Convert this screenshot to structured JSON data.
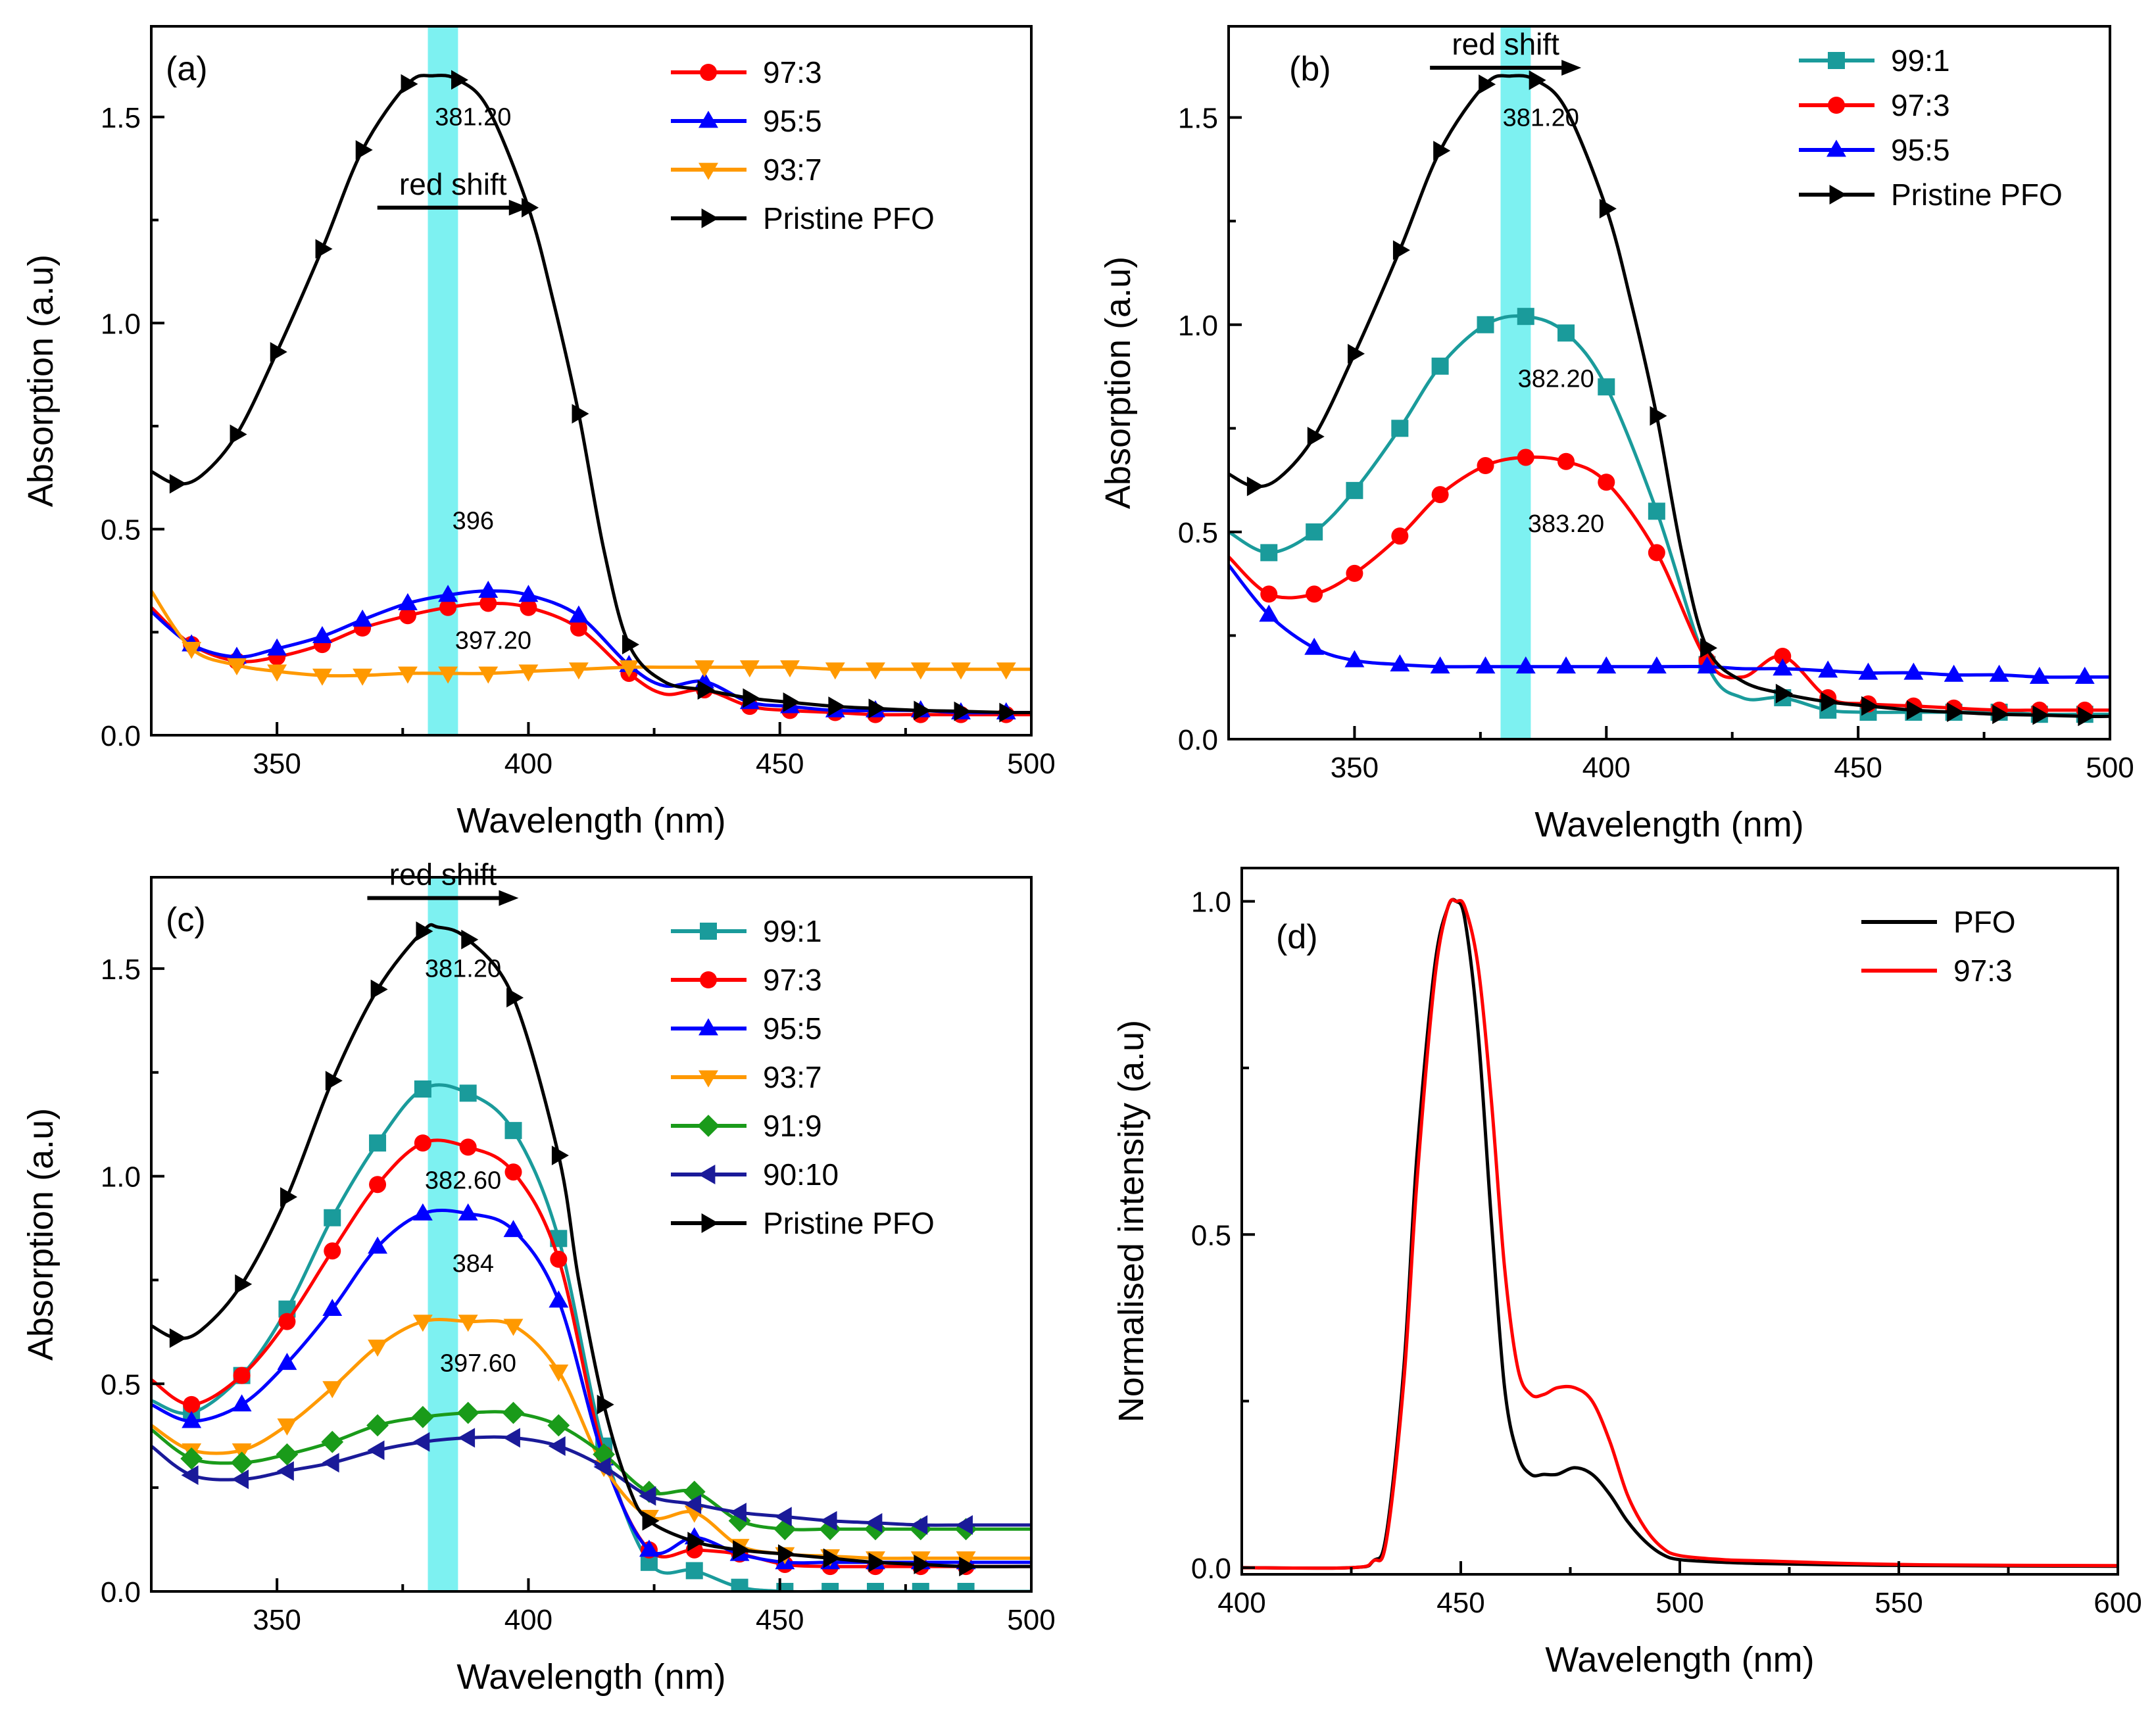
{
  "chart_data": [
    {
      "type": "line",
      "panel_label": "(a)",
      "xlabel": "Wavelength (nm)",
      "ylabel": "Absorption (a.u)",
      "xlim": [
        325,
        500
      ],
      "ylim": [
        0,
        1.72
      ],
      "xticks": [
        350,
        400,
        450,
        500
      ],
      "yticks": [
        0.0,
        0.5,
        1.0,
        1.5
      ],
      "ytick_labels": [
        "0.0",
        "0.5",
        "1.0",
        "1.5"
      ],
      "band_x": [
        380,
        386
      ],
      "band_color": "#6ff0f0",
      "series": [
        {
          "name": "97:3",
          "color": "#ff0000",
          "marker": "circle",
          "x": [
            325,
            333,
            342,
            350,
            359,
            367,
            376,
            384,
            392,
            400,
            410,
            420,
            427,
            435,
            444,
            452,
            461,
            469,
            478,
            486,
            495,
            500
          ],
          "y": [
            0.31,
            0.22,
            0.18,
            0.19,
            0.22,
            0.26,
            0.29,
            0.31,
            0.32,
            0.31,
            0.26,
            0.15,
            0.1,
            0.11,
            0.07,
            0.06,
            0.055,
            0.05,
            0.05,
            0.05,
            0.05,
            0.05
          ]
        },
        {
          "name": "95:5",
          "color": "#0000ff",
          "marker": "triangle-up",
          "x": [
            325,
            333,
            342,
            350,
            359,
            367,
            376,
            384,
            392,
            400,
            410,
            420,
            427,
            435,
            444,
            452,
            461,
            469,
            478,
            486,
            495,
            500
          ],
          "y": [
            0.3,
            0.22,
            0.19,
            0.21,
            0.24,
            0.28,
            0.32,
            0.34,
            0.35,
            0.34,
            0.29,
            0.17,
            0.12,
            0.13,
            0.08,
            0.07,
            0.06,
            0.06,
            0.06,
            0.055,
            0.055,
            0.055
          ]
        },
        {
          "name": "93:7",
          "color": "#ff9900",
          "marker": "triangle-down",
          "x": [
            325,
            333,
            342,
            350,
            359,
            367,
            376,
            384,
            392,
            400,
            410,
            420,
            427,
            435,
            444,
            452,
            461,
            469,
            478,
            486,
            495,
            500
          ],
          "y": [
            0.35,
            0.21,
            0.17,
            0.155,
            0.145,
            0.145,
            0.15,
            0.15,
            0.15,
            0.155,
            0.16,
            0.165,
            0.165,
            0.165,
            0.165,
            0.165,
            0.16,
            0.16,
            0.16,
            0.16,
            0.16,
            0.16
          ]
        },
        {
          "name": "Pristine PFO",
          "color": "#000000",
          "marker": "triangle-right",
          "x": [
            325,
            330,
            335,
            342,
            350,
            359,
            367,
            376,
            381,
            386,
            392,
            400,
            405,
            410,
            415,
            420,
            427,
            435,
            444,
            452,
            461,
            469,
            478,
            486,
            495,
            500
          ],
          "y": [
            0.64,
            0.61,
            0.63,
            0.73,
            0.93,
            1.18,
            1.42,
            1.58,
            1.6,
            1.59,
            1.52,
            1.28,
            1.05,
            0.78,
            0.45,
            0.22,
            0.13,
            0.11,
            0.09,
            0.08,
            0.07,
            0.065,
            0.06,
            0.058,
            0.055,
            0.055
          ]
        }
      ],
      "annotations": [
        {
          "text": "381.20",
          "x": 389,
          "y": 1.48
        },
        {
          "text": "396",
          "x": 389,
          "y": 0.5
        },
        {
          "text": "397.20",
          "x": 393,
          "y": 0.21
        },
        {
          "text": "red shift",
          "x": 385,
          "y": 1.28
        }
      ]
    },
    {
      "type": "line",
      "panel_label": "(b)",
      "xlabel": "Wavelength (nm)",
      "ylabel": "Absorption (a.u)",
      "xlim": [
        325,
        500
      ],
      "ylim": [
        0,
        1.72
      ],
      "xticks": [
        350,
        400,
        450,
        500
      ],
      "yticks": [
        0.0,
        0.5,
        1.0,
        1.5
      ],
      "ytick_labels": [
        "0.0",
        "0.5",
        "1.0",
        "1.5"
      ],
      "band_x": [
        379,
        385
      ],
      "band_color": "#6ff0f0",
      "series": [
        {
          "name": "99:1",
          "color": "#1a9b9b",
          "marker": "square",
          "x": [
            325,
            333,
            342,
            350,
            359,
            367,
            376,
            384,
            392,
            400,
            410,
            420,
            427,
            435,
            444,
            452,
            461,
            469,
            478,
            486,
            495,
            500
          ],
          "y": [
            0.5,
            0.45,
            0.5,
            0.6,
            0.75,
            0.9,
            1.0,
            1.02,
            0.98,
            0.85,
            0.55,
            0.18,
            0.1,
            0.1,
            0.07,
            0.065,
            0.065,
            0.065,
            0.065,
            0.06,
            0.06,
            0.06
          ]
        },
        {
          "name": "97:3",
          "color": "#ff0000",
          "marker": "circle",
          "x": [
            325,
            333,
            342,
            350,
            359,
            367,
            376,
            384,
            392,
            400,
            410,
            420,
            427,
            435,
            444,
            452,
            461,
            469,
            478,
            486,
            495,
            500
          ],
          "y": [
            0.44,
            0.35,
            0.35,
            0.4,
            0.49,
            0.59,
            0.66,
            0.68,
            0.67,
            0.62,
            0.45,
            0.19,
            0.15,
            0.2,
            0.1,
            0.085,
            0.08,
            0.075,
            0.07,
            0.07,
            0.07,
            0.07
          ]
        },
        {
          "name": "95:5",
          "color": "#0000ff",
          "marker": "triangle-up",
          "x": [
            325,
            333,
            342,
            350,
            359,
            367,
            376,
            384,
            392,
            400,
            410,
            420,
            427,
            435,
            444,
            452,
            461,
            469,
            478,
            486,
            495,
            500
          ],
          "y": [
            0.42,
            0.3,
            0.22,
            0.19,
            0.18,
            0.175,
            0.175,
            0.175,
            0.175,
            0.175,
            0.175,
            0.175,
            0.17,
            0.17,
            0.165,
            0.16,
            0.16,
            0.155,
            0.155,
            0.15,
            0.15,
            0.15
          ]
        },
        {
          "name": "Pristine PFO",
          "color": "#000000",
          "marker": "triangle-right",
          "x": [
            325,
            330,
            335,
            342,
            350,
            359,
            367,
            376,
            381,
            386,
            392,
            400,
            405,
            410,
            415,
            420,
            427,
            435,
            444,
            452,
            461,
            469,
            478,
            486,
            495,
            500
          ],
          "y": [
            0.64,
            0.61,
            0.63,
            0.73,
            0.93,
            1.18,
            1.42,
            1.58,
            1.6,
            1.59,
            1.52,
            1.28,
            1.05,
            0.78,
            0.45,
            0.22,
            0.14,
            0.11,
            0.09,
            0.08,
            0.07,
            0.065,
            0.06,
            0.058,
            0.055,
            0.055
          ]
        }
      ],
      "annotations": [
        {
          "text": "381.20",
          "x": 387,
          "y": 1.48
        },
        {
          "text": "382.20",
          "x": 390,
          "y": 0.85
        },
        {
          "text": "383.20",
          "x": 392,
          "y": 0.5
        },
        {
          "text": "red shift",
          "x": 380,
          "y": 1.62
        }
      ]
    },
    {
      "type": "line",
      "panel_label": "(c)",
      "xlabel": "Wavelength (nm)",
      "ylabel": "Absorption (a.u)",
      "xlim": [
        325,
        500
      ],
      "ylim": [
        0,
        1.72
      ],
      "xticks": [
        350,
        400,
        450,
        500
      ],
      "yticks": [
        0.0,
        0.5,
        1.0,
        1.5
      ],
      "ytick_labels": [
        "0.0",
        "0.5",
        "1.0",
        "1.5"
      ],
      "band_x": [
        380,
        386
      ],
      "band_color": "#6ff0f0",
      "series": [
        {
          "name": "99:1",
          "color": "#1a9b9b",
          "marker": "square",
          "x": [
            325,
            333,
            343,
            352,
            361,
            370,
            379,
            388,
            397,
            406,
            415,
            424,
            433,
            442,
            451,
            460,
            469,
            478,
            487,
            500
          ],
          "y": [
            0.46,
            0.43,
            0.52,
            0.68,
            0.9,
            1.08,
            1.21,
            1.2,
            1.11,
            0.85,
            0.35,
            0.07,
            0.05,
            0.01,
            0.0,
            0.0,
            0.0,
            0.0,
            0.0,
            0.0
          ]
        },
        {
          "name": "97:3",
          "color": "#ff0000",
          "marker": "circle",
          "x": [
            325,
            333,
            343,
            352,
            361,
            370,
            379,
            388,
            397,
            406,
            415,
            424,
            433,
            442,
            451,
            460,
            469,
            478,
            487,
            500
          ],
          "y": [
            0.51,
            0.45,
            0.52,
            0.65,
            0.82,
            0.98,
            1.08,
            1.07,
            1.01,
            0.8,
            0.33,
            0.1,
            0.1,
            0.09,
            0.065,
            0.06,
            0.06,
            0.06,
            0.06,
            0.06
          ]
        },
        {
          "name": "95:5",
          "color": "#0000ff",
          "marker": "triangle-up",
          "x": [
            325,
            333,
            343,
            352,
            361,
            370,
            379,
            388,
            397,
            406,
            415,
            424,
            433,
            442,
            451,
            460,
            469,
            478,
            487,
            500
          ],
          "y": [
            0.45,
            0.41,
            0.45,
            0.55,
            0.68,
            0.83,
            0.91,
            0.91,
            0.87,
            0.7,
            0.32,
            0.1,
            0.13,
            0.09,
            0.07,
            0.07,
            0.07,
            0.07,
            0.07,
            0.07
          ]
        },
        {
          "name": "93:7",
          "color": "#ff9900",
          "marker": "triangle-down",
          "x": [
            325,
            333,
            343,
            352,
            361,
            370,
            379,
            388,
            397,
            406,
            415,
            424,
            433,
            442,
            451,
            460,
            469,
            478,
            487,
            500
          ],
          "y": [
            0.4,
            0.34,
            0.34,
            0.4,
            0.49,
            0.59,
            0.65,
            0.65,
            0.64,
            0.53,
            0.3,
            0.18,
            0.19,
            0.11,
            0.09,
            0.085,
            0.08,
            0.08,
            0.08,
            0.08
          ]
        },
        {
          "name": "91:9",
          "color": "#1a9b1a",
          "marker": "diamond",
          "x": [
            325,
            333,
            343,
            352,
            361,
            370,
            379,
            388,
            397,
            406,
            415,
            424,
            433,
            442,
            451,
            460,
            469,
            478,
            487,
            500
          ],
          "y": [
            0.39,
            0.32,
            0.31,
            0.33,
            0.36,
            0.4,
            0.42,
            0.43,
            0.43,
            0.4,
            0.33,
            0.24,
            0.24,
            0.17,
            0.15,
            0.15,
            0.15,
            0.15,
            0.15,
            0.15
          ]
        },
        {
          "name": "90:10",
          "color": "#1a1a99",
          "marker": "triangle-left",
          "x": [
            325,
            333,
            343,
            352,
            361,
            370,
            379,
            388,
            397,
            406,
            415,
            424,
            433,
            442,
            451,
            460,
            469,
            478,
            487,
            500
          ],
          "y": [
            0.35,
            0.28,
            0.27,
            0.29,
            0.31,
            0.34,
            0.36,
            0.37,
            0.37,
            0.35,
            0.3,
            0.23,
            0.21,
            0.19,
            0.18,
            0.17,
            0.165,
            0.16,
            0.16,
            0.16
          ]
        },
        {
          "name": "Pristine PFO",
          "color": "#000000",
          "marker": "triangle-right",
          "x": [
            325,
            330,
            335,
            343,
            352,
            361,
            370,
            379,
            382,
            388,
            397,
            406,
            410,
            415,
            420,
            424,
            433,
            442,
            451,
            460,
            469,
            478,
            487,
            500
          ],
          "y": [
            0.64,
            0.61,
            0.63,
            0.74,
            0.95,
            1.23,
            1.45,
            1.59,
            1.6,
            1.57,
            1.43,
            1.05,
            0.75,
            0.45,
            0.25,
            0.17,
            0.12,
            0.1,
            0.09,
            0.08,
            0.07,
            0.065,
            0.06,
            0.06
          ]
        }
      ],
      "annotations": [
        {
          "text": "381.20",
          "x": 387,
          "y": 1.48
        },
        {
          "text": "382.60",
          "x": 387,
          "y": 0.97
        },
        {
          "text": "384",
          "x": 389,
          "y": 0.77
        },
        {
          "text": "397.60",
          "x": 390,
          "y": 0.53
        },
        {
          "text": "red shift",
          "x": 383,
          "y": 1.67
        }
      ]
    },
    {
      "type": "line",
      "panel_label": "(d)",
      "xlabel": "Wavelength (nm)",
      "ylabel": "Normalised intensity (a.u)",
      "xlim": [
        400,
        600
      ],
      "ylim": [
        -0.01,
        1.05
      ],
      "xticks": [
        400,
        450,
        500,
        550,
        600
      ],
      "yticks": [
        0.0,
        0.5,
        1.0
      ],
      "ytick_labels": [
        "0.0",
        "0.5",
        "1.0"
      ],
      "series": [
        {
          "name": "PFO",
          "color": "#000000",
          "marker": "none",
          "x": [
            400,
            425,
            430,
            433,
            437,
            440,
            444,
            447,
            449,
            451,
            454,
            457,
            460,
            463,
            466,
            469,
            472,
            476,
            480,
            484,
            488,
            492,
            496,
            500,
            510,
            520,
            540,
            560,
            600
          ],
          "y": [
            0.0,
            0.0,
            0.01,
            0.05,
            0.3,
            0.62,
            0.9,
            0.99,
            1.0,
            0.97,
            0.8,
            0.52,
            0.27,
            0.17,
            0.14,
            0.14,
            0.14,
            0.15,
            0.14,
            0.11,
            0.07,
            0.04,
            0.02,
            0.012,
            0.008,
            0.006,
            0.004,
            0.003,
            0.002
          ]
        },
        {
          "name": "97:3",
          "color": "#ff0000",
          "marker": "none",
          "x": [
            400,
            425,
            430,
            433,
            437,
            440,
            444,
            447,
            449,
            451,
            454,
            457,
            460,
            463,
            466,
            469,
            472,
            476,
            480,
            484,
            488,
            492,
            496,
            500,
            510,
            520,
            540,
            560,
            600
          ],
          "y": [
            0.0,
            0.0,
            0.01,
            0.04,
            0.28,
            0.58,
            0.88,
            0.99,
            1.0,
            0.99,
            0.9,
            0.7,
            0.45,
            0.3,
            0.26,
            0.26,
            0.27,
            0.27,
            0.25,
            0.19,
            0.11,
            0.06,
            0.03,
            0.018,
            0.012,
            0.01,
            0.006,
            0.004,
            0.003
          ]
        }
      ],
      "annotations": []
    }
  ]
}
